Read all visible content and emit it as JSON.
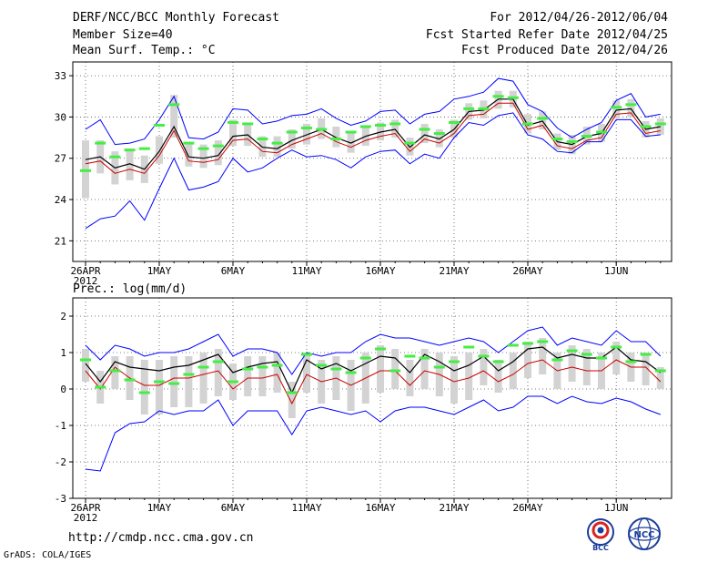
{
  "header": {
    "title": "DERF/NCC/BCC Monthly Forecast",
    "member_size": "Member Size=40",
    "variable_top": "Mean Surf. Temp.: °C",
    "for_range": "For 2012/04/26-2012/06/04",
    "started": "Fcst Started Refer Date 2012/04/25",
    "produced": "Fcst Produced Date 2012/04/26"
  },
  "footer": {
    "url": "http://cmdp.ncc.cma.gov.cn",
    "grads": "GrADS: COLA/IGES",
    "logo_bcc": "BCC",
    "logo_ncc": "NCC"
  },
  "colors": {
    "mean": "#000000",
    "upper": "#0000ff",
    "lower": "#0000ff",
    "median": "#cc0000",
    "box": "#d3d3d3",
    "obs": "#44ee44",
    "grid": "#555555"
  },
  "chart_data": [
    {
      "type": "line",
      "title": "Mean Surf. Temp.: °C",
      "xlabel": "",
      "ylabel": "Mean Surf. Temp. (°C)",
      "ylim": [
        19.5,
        34
      ],
      "yticks": [
        21,
        24,
        27,
        30,
        33
      ],
      "xticks": [
        {
          "day": 0,
          "label": "26APR",
          "sublabel": "2012"
        },
        {
          "day": 5,
          "label": "1MAY"
        },
        {
          "day": 10,
          "label": "6MAY"
        },
        {
          "day": 15,
          "label": "11MAY"
        },
        {
          "day": 20,
          "label": "16MAY"
        },
        {
          "day": 25,
          "label": "21MAY"
        },
        {
          "day": 30,
          "label": "26MAY"
        },
        {
          "day": 36,
          "label": "1JUN"
        }
      ],
      "series": [
        {
          "name": "ensemble max",
          "values": [
            29.1,
            29.8,
            28.0,
            28.1,
            28.4,
            29.8,
            31.5,
            28.5,
            28.4,
            28.9,
            30.6,
            30.5,
            29.5,
            29.7,
            30.1,
            30.2,
            30.6,
            29.9,
            29.4,
            29.7,
            30.4,
            30.5,
            29.5,
            30.2,
            30.4,
            31.3,
            31.5,
            31.8,
            32.8,
            32.6,
            30.9,
            30.4,
            29.2,
            28.5,
            29.1,
            29.6,
            31.2,
            31.7,
            30.0,
            30.2
          ]
        },
        {
          "name": "ensemble mean",
          "values": [
            26.9,
            27.1,
            26.3,
            26.6,
            26.2,
            27.5,
            29.3,
            27.1,
            27.0,
            27.2,
            28.6,
            28.7,
            27.8,
            27.7,
            28.3,
            28.7,
            29.1,
            28.5,
            28.1,
            28.6,
            28.9,
            29.1,
            27.8,
            28.7,
            28.4,
            29.1,
            30.4,
            30.5,
            31.3,
            31.3,
            29.4,
            29.7,
            28.2,
            28.0,
            28.6,
            28.8,
            30.5,
            30.6,
            29.1,
            29.3
          ]
        },
        {
          "name": "ensemble median",
          "values": [
            26.6,
            26.8,
            25.9,
            26.2,
            25.9,
            27.2,
            29.0,
            26.8,
            26.7,
            26.9,
            28.3,
            28.4,
            27.5,
            27.4,
            28.0,
            28.4,
            28.8,
            28.2,
            27.8,
            28.3,
            28.6,
            28.8,
            27.5,
            28.4,
            28.1,
            28.8,
            30.1,
            30.2,
            31.0,
            31.0,
            29.1,
            29.4,
            27.9,
            27.7,
            28.3,
            28.5,
            30.2,
            30.3,
            28.8,
            29.0
          ]
        },
        {
          "name": "ensemble min",
          "values": [
            21.9,
            22.6,
            22.8,
            23.9,
            22.5,
            24.8,
            27.0,
            24.7,
            24.9,
            25.3,
            27.0,
            26.0,
            26.3,
            27.0,
            27.6,
            27.1,
            27.2,
            26.9,
            26.3,
            27.1,
            27.5,
            27.6,
            26.6,
            27.3,
            27.0,
            28.5,
            29.6,
            29.4,
            30.1,
            30.3,
            28.7,
            28.4,
            27.5,
            27.4,
            28.2,
            28.2,
            29.8,
            29.8,
            28.6,
            28.7
          ]
        },
        {
          "name": "observed",
          "values": [
            26.1,
            28.1,
            27.1,
            27.6,
            27.7,
            29.4,
            30.9,
            28.1,
            27.7,
            27.9,
            29.6,
            29.5,
            28.4,
            28.1,
            28.9,
            29.2,
            29.1,
            28.4,
            28.9,
            29.3,
            29.4,
            29.5,
            28.1,
            29.1,
            28.8,
            29.6,
            30.6,
            30.6,
            31.5,
            31.4,
            29.5,
            29.9,
            28.4,
            28.2,
            28.6,
            28.9,
            30.7,
            30.9,
            29.3,
            29.5
          ]
        },
        {
          "name": "box lower",
          "values": [
            24.1,
            25.9,
            25.1,
            25.4,
            25.2,
            26.6,
            28.5,
            26.4,
            26.3,
            26.5,
            27.9,
            27.9,
            27.1,
            27.1,
            27.7,
            28.0,
            28.4,
            27.8,
            27.4,
            27.9,
            28.3,
            28.5,
            27.2,
            28.1,
            27.8,
            28.5,
            29.8,
            29.9,
            30.6,
            30.7,
            28.8,
            29.1,
            27.6,
            27.3,
            28.0,
            28.2,
            29.9,
            30.0,
            28.5,
            28.7
          ]
        },
        {
          "name": "box upper",
          "values": [
            28.3,
            28.3,
            27.5,
            27.7,
            27.2,
            28.6,
            31.6,
            28.2,
            28.0,
            28.3,
            29.8,
            29.6,
            28.6,
            28.6,
            29.1,
            29.5,
            29.9,
            29.3,
            28.9,
            29.3,
            29.6,
            29.8,
            28.5,
            29.5,
            29.1,
            29.8,
            31.0,
            31.2,
            31.9,
            31.9,
            30.2,
            30.4,
            28.8,
            28.7,
            29.3,
            29.5,
            31.2,
            31.3,
            29.7,
            29.9
          ]
        }
      ]
    },
    {
      "type": "line",
      "title": "Prec.: log(mm/d)",
      "xlabel": "",
      "ylabel": "Prec. log(mm/d)",
      "ylim": [
        -3,
        2.5
      ],
      "yticks": [
        -3,
        -2,
        -1,
        0,
        1,
        2
      ],
      "xticks": [
        {
          "day": 0,
          "label": "26APR",
          "sublabel": "2012"
        },
        {
          "day": 5,
          "label": "1MAY"
        },
        {
          "day": 10,
          "label": "6MAY"
        },
        {
          "day": 15,
          "label": "11MAY"
        },
        {
          "day": 20,
          "label": "16MAY"
        },
        {
          "day": 25,
          "label": "21MAY"
        },
        {
          "day": 30,
          "label": "26MAY"
        },
        {
          "day": 36,
          "label": "1JUN"
        }
      ],
      "series": [
        {
          "name": "ensemble max",
          "values": [
            1.2,
            0.8,
            1.2,
            1.1,
            0.9,
            1.0,
            1.0,
            1.1,
            1.3,
            1.5,
            0.9,
            1.1,
            1.1,
            1.0,
            0.4,
            1.0,
            0.9,
            1.0,
            1.0,
            1.3,
            1.5,
            1.4,
            1.4,
            1.3,
            1.2,
            1.3,
            1.4,
            1.3,
            1.0,
            1.3,
            1.6,
            1.7,
            1.2,
            1.4,
            1.3,
            1.2,
            1.6,
            1.3,
            1.3,
            0.9
          ]
        },
        {
          "name": "ensemble mean",
          "values": [
            0.7,
            0.2,
            0.75,
            0.6,
            0.55,
            0.5,
            0.6,
            0.65,
            0.8,
            0.95,
            0.45,
            0.6,
            0.7,
            0.75,
            -0.1,
            0.8,
            0.55,
            0.7,
            0.5,
            0.7,
            0.9,
            0.85,
            0.45,
            0.95,
            0.75,
            0.5,
            0.65,
            0.9,
            0.5,
            0.75,
            1.1,
            1.15,
            0.85,
            0.95,
            0.85,
            0.85,
            1.15,
            0.8,
            0.75,
            0.45
          ]
        },
        {
          "name": "ensemble median",
          "values": [
            0.5,
            0.0,
            0.6,
            0.3,
            0.1,
            0.1,
            0.3,
            0.3,
            0.4,
            0.5,
            0.0,
            0.3,
            0.3,
            0.4,
            -0.4,
            0.4,
            0.2,
            0.3,
            0.1,
            0.3,
            0.5,
            0.5,
            0.1,
            0.5,
            0.4,
            0.2,
            0.3,
            0.5,
            0.2,
            0.4,
            0.7,
            0.8,
            0.5,
            0.6,
            0.5,
            0.5,
            0.8,
            0.6,
            0.6,
            0.2
          ]
        },
        {
          "name": "ensemble min",
          "values": [
            -2.2,
            -2.25,
            -1.2,
            -0.95,
            -0.9,
            -0.6,
            -0.7,
            -0.6,
            -0.6,
            -0.3,
            -1.0,
            -0.6,
            -0.6,
            -0.6,
            -1.25,
            -0.6,
            -0.5,
            -0.6,
            -0.7,
            -0.6,
            -0.9,
            -0.6,
            -0.5,
            -0.5,
            -0.6,
            -0.7,
            -0.5,
            -0.3,
            -0.6,
            -0.5,
            -0.2,
            -0.2,
            -0.4,
            -0.2,
            -0.35,
            -0.4,
            -0.25,
            -0.35,
            -0.55,
            -0.7
          ]
        },
        {
          "name": "observed",
          "values": [
            0.8,
            0.05,
            0.5,
            0.25,
            -0.1,
            0.2,
            0.15,
            0.4,
            0.6,
            0.75,
            0.2,
            0.55,
            0.6,
            0.65,
            -0.1,
            0.95,
            0.65,
            0.55,
            0.45,
            0.85,
            1.1,
            0.5,
            0.9,
            0.85,
            0.6,
            0.75,
            1.15,
            0.9,
            0.75,
            1.2,
            1.25,
            1.3,
            0.8,
            1.05,
            0.95,
            0.85,
            1.15,
            0.75,
            0.95,
            0.5
          ]
        },
        {
          "name": "box lower",
          "values": [
            0.2,
            -0.4,
            0.0,
            -0.3,
            -0.7,
            -0.7,
            -0.5,
            -0.5,
            -0.4,
            -0.2,
            -0.3,
            -0.2,
            -0.2,
            -0.1,
            -0.8,
            -0.1,
            -0.4,
            -0.3,
            -0.6,
            -0.4,
            -0.1,
            0.0,
            -0.2,
            0.0,
            -0.2,
            -0.4,
            -0.3,
            0.1,
            -0.1,
            0.0,
            0.3,
            0.4,
            0.0,
            0.2,
            0.1,
            0.0,
            0.4,
            0.2,
            0.1,
            0.0
          ]
        },
        {
          "name": "box upper",
          "values": [
            1.1,
            0.5,
            0.9,
            0.9,
            0.8,
            0.8,
            0.9,
            0.9,
            1.0,
            1.1,
            0.7,
            0.9,
            0.9,
            1.0,
            0.2,
            1.0,
            0.8,
            0.9,
            0.8,
            1.0,
            1.2,
            1.1,
            0.8,
            1.1,
            1.0,
            0.9,
            1.0,
            1.1,
            0.8,
            1.0,
            1.3,
            1.4,
            1.0,
            1.2,
            1.1,
            1.0,
            1.3,
            1.0,
            1.0,
            0.6
          ]
        }
      ]
    }
  ]
}
